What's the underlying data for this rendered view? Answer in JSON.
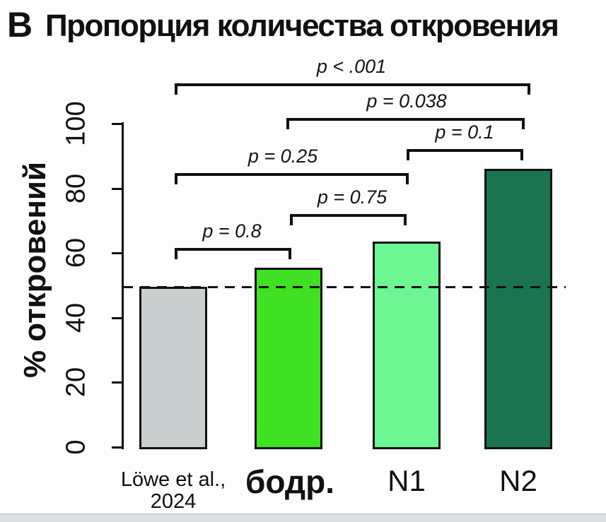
{
  "title": {
    "panel_label": "B",
    "text": "Пропорция количества откровения"
  },
  "chart_data": {
    "type": "bar",
    "title": "Пропорция количества откровения",
    "xlabel": "",
    "ylabel": "% откровений",
    "categories": [
      "Löwe et al., 2024",
      "бодр.",
      "N1",
      "N2"
    ],
    "category_display": [
      [
        "Löwe et al.,",
        "2024"
      ],
      [
        "бодр."
      ],
      [
        "N1"
      ],
      [
        "N2"
      ]
    ],
    "values": [
      49.5,
      55.5,
      63.5,
      86
    ],
    "bar_colors": [
      "#c9cecf",
      "#40e122",
      "#6cf793",
      "#1a7450"
    ],
    "ylim": [
      0,
      100
    ],
    "yticks": [
      0,
      20,
      40,
      60,
      80,
      100
    ],
    "grid": false,
    "reference_line": 49.5,
    "reference_line_style": "dashed",
    "significance": [
      {
        "label": "p < .001",
        "groups": [
          "Löwe et al., 2024",
          "N2"
        ],
        "from": 0,
        "to": 3
      },
      {
        "label": "p = 0.038",
        "groups": [
          "бодр.",
          "N2"
        ],
        "from": 1,
        "to": 3
      },
      {
        "label": "p = 0.1",
        "groups": [
          "N1",
          "N2"
        ],
        "from": 2,
        "to": 3
      },
      {
        "label": "p = 0.25",
        "groups": [
          "Löwe et al., 2024",
          "N1"
        ],
        "from": 0,
        "to": 2
      },
      {
        "label": "p = 0.75",
        "groups": [
          "бодр.",
          "N1"
        ],
        "from": 1,
        "to": 2
      },
      {
        "label": "p = 0.8",
        "groups": [
          "Löwe et al., 2024",
          "бодр."
        ],
        "from": 0,
        "to": 1
      }
    ]
  },
  "colors": {
    "background": "#fdfdfd",
    "axis": "#111111",
    "reference_bar": "#c9cecf",
    "wake_bar": "#40e122",
    "n1_bar": "#6cf793",
    "n2_bar": "#1a7450",
    "bottom_strip": "#dcdfe2"
  }
}
